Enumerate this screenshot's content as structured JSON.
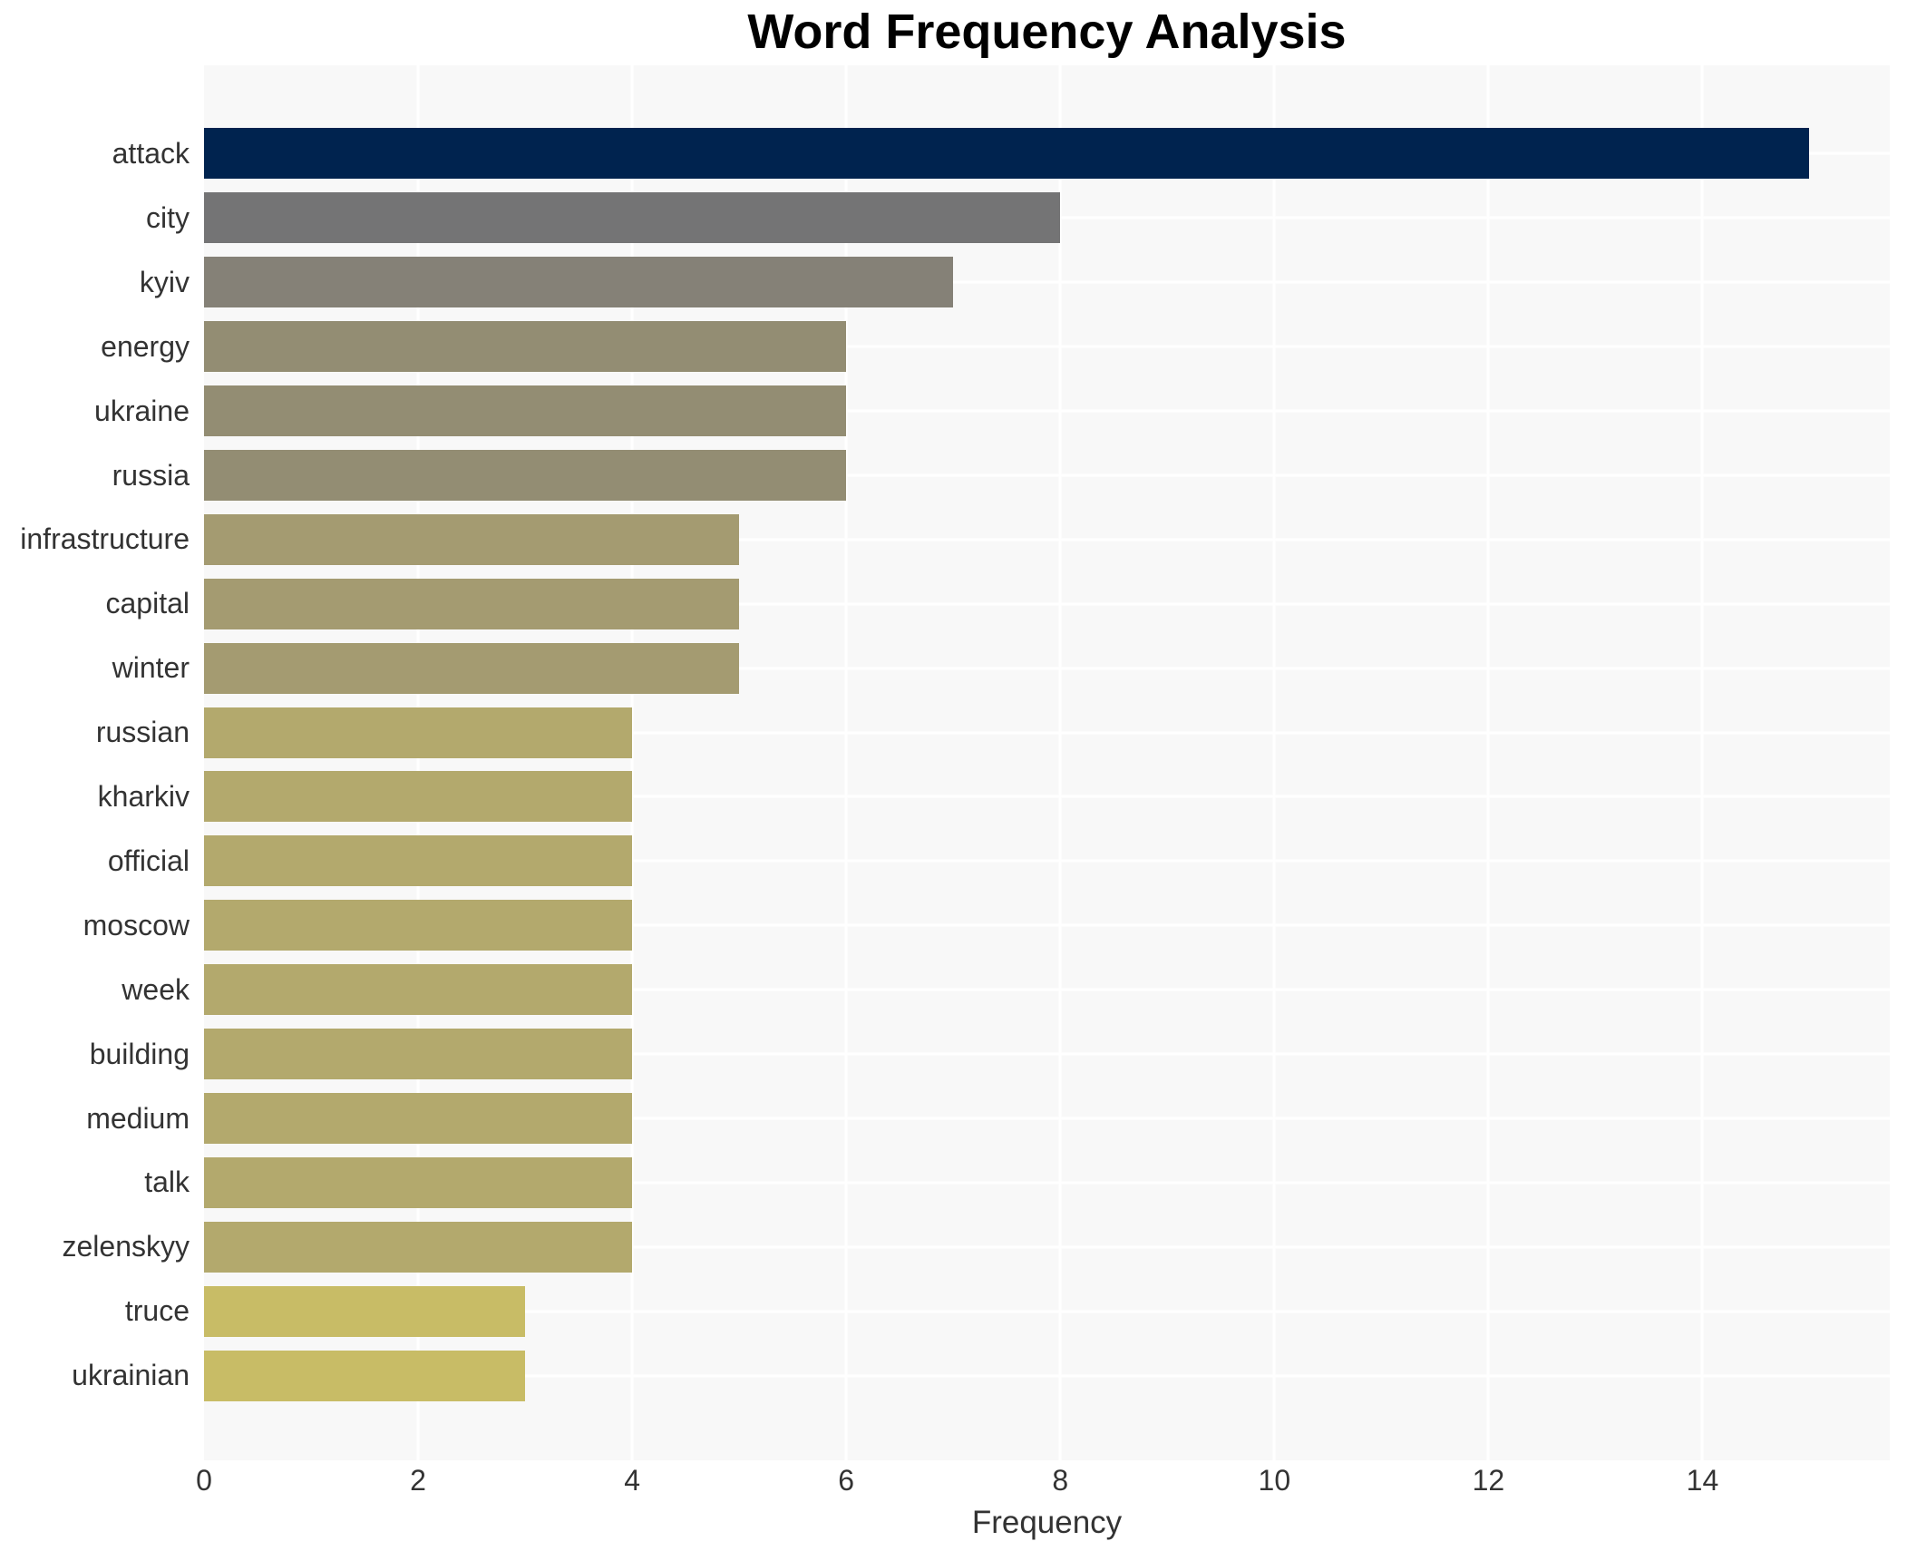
{
  "title": "Word Frequency Analysis",
  "chart_data": {
    "type": "bar",
    "orientation": "horizontal",
    "title": "Word Frequency Analysis",
    "xlabel": "Frequency",
    "ylabel": "",
    "categories": [
      "attack",
      "city",
      "kyiv",
      "energy",
      "ukraine",
      "russia",
      "infrastructure",
      "capital",
      "winter",
      "russian",
      "kharkiv",
      "official",
      "moscow",
      "week",
      "building",
      "medium",
      "talk",
      "zelenskyy",
      "truce",
      "ukrainian"
    ],
    "values": [
      15,
      8,
      7,
      6,
      6,
      6,
      5,
      5,
      5,
      4,
      4,
      4,
      4,
      4,
      4,
      4,
      4,
      4,
      3,
      3
    ],
    "bar_colors": [
      "#00234f",
      "#747475",
      "#858177",
      "#938d73",
      "#938d73",
      "#938d73",
      "#a49b71",
      "#a49b71",
      "#a49b71",
      "#b3a96d",
      "#b3a96d",
      "#b3a96d",
      "#b3a96d",
      "#b3a96d",
      "#b3a96d",
      "#b3a96d",
      "#b3a96d",
      "#b3a96d",
      "#c8bc66",
      "#c8bc66"
    ],
    "xlim": [
      0,
      15.75
    ],
    "xticks": [
      0,
      2,
      4,
      6,
      8,
      10,
      12,
      14
    ],
    "grid": true,
    "legend": "none",
    "plot_background": "#f8f8f8",
    "grid_color": "#ffffff",
    "text_color": "#333333",
    "title_color": "#000000"
  }
}
